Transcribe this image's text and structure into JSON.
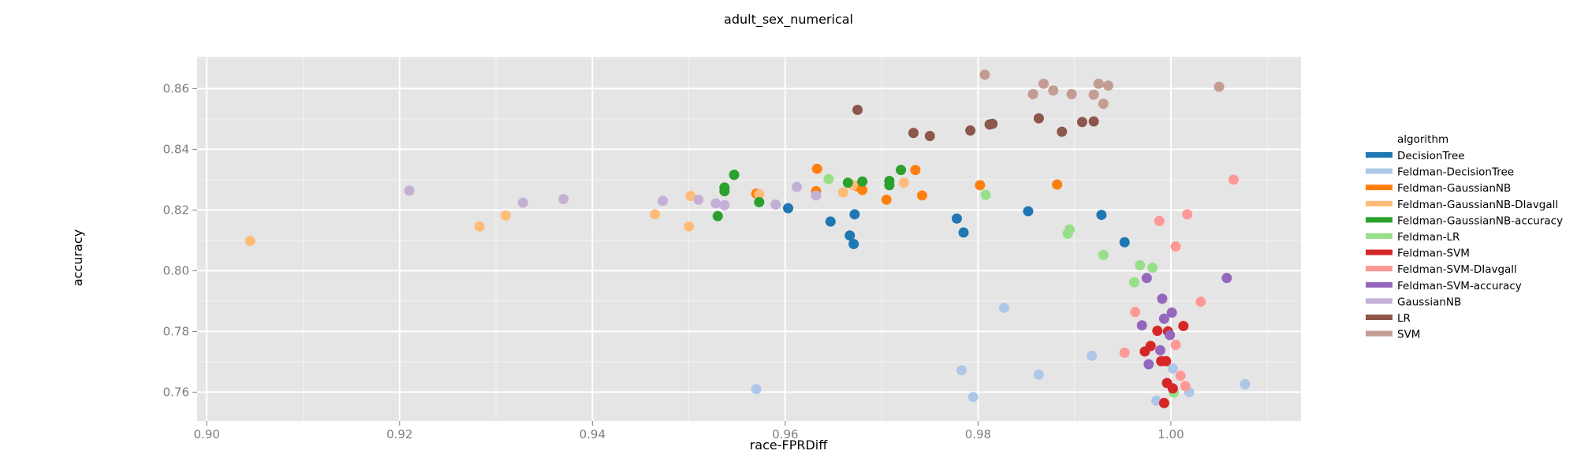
{
  "chart_data": {
    "type": "scatter",
    "title": "adult_sex_numerical",
    "xlabel": "race-FPRDiff",
    "ylabel": "accuracy",
    "xlim": [
      0.899,
      1.0135
    ],
    "ylim": [
      0.7505,
      0.8705
    ],
    "xticks": [
      0.9,
      0.92,
      0.94,
      0.96,
      0.98,
      1.0
    ],
    "xtick_labels": [
      "0.90",
      "0.92",
      "0.94",
      "0.96",
      "0.98",
      "1.00"
    ],
    "yticks": [
      0.76,
      0.78,
      0.8,
      0.82,
      0.84,
      0.86
    ],
    "ytick_labels": [
      "0.76",
      "0.78",
      "0.80",
      "0.82",
      "0.84",
      "0.86"
    ],
    "grid": true,
    "legend_title": "algorithm",
    "legend_position": "right",
    "series": [
      {
        "name": "DecisionTree",
        "color": "#1f77b4",
        "x": [
          0.9603,
          0.9647,
          0.9667,
          0.9671,
          0.9672,
          0.9778,
          0.9785,
          0.9852,
          0.9928,
          0.9952
        ],
        "y": [
          0.8206,
          0.8162,
          0.8116,
          0.8088,
          0.8186,
          0.8172,
          0.8126,
          0.8196,
          0.8184,
          0.8094
        ]
      },
      {
        "name": "Feldman-DecisionTree",
        "color": "#aec7e8",
        "x": [
          0.957,
          0.9783,
          0.9795,
          0.9827,
          0.9863,
          0.9918,
          0.9985,
          1.0002,
          1.0019,
          1.0077
        ],
        "y": [
          0.761,
          0.7672,
          0.7584,
          0.7878,
          0.7658,
          0.772,
          0.7572,
          0.7678,
          0.76,
          0.7626
        ]
      },
      {
        "name": "Feldman-GaussianNB",
        "color": "#ff7f0e",
        "x": [
          0.957,
          0.9633,
          0.9632,
          0.9675,
          0.968,
          0.9705,
          0.9735,
          0.9742,
          0.9802,
          0.9882
        ],
        "y": [
          0.8254,
          0.8336,
          0.8262,
          0.8278,
          0.8266,
          0.8234,
          0.8332,
          0.8248,
          0.8282,
          0.8284
        ]
      },
      {
        "name": "Feldman-GaussianNB-DIavgall",
        "color": "#ffbb78",
        "x": [
          0.9045,
          0.9283,
          0.931,
          0.9465,
          0.95,
          0.9502,
          0.9573,
          0.966,
          0.967,
          0.9723
        ],
        "y": [
          0.8098,
          0.8146,
          0.8182,
          0.8186,
          0.8146,
          0.8246,
          0.8252,
          0.8258,
          0.8282,
          0.829
        ]
      },
      {
        "name": "Feldman-GaussianNB-accuracy",
        "color": "#2ca02c",
        "x": [
          0.953,
          0.9537,
          0.9537,
          0.9547,
          0.9573,
          0.9665,
          0.968,
          0.9708,
          0.9708,
          0.972
        ],
        "y": [
          0.818,
          0.8262,
          0.8274,
          0.8316,
          0.8226,
          0.829,
          0.8294,
          0.8282,
          0.8296,
          0.8332
        ]
      },
      {
        "name": "Feldman-LR",
        "color": "#98df8a",
        "x": [
          0.9645,
          0.9808,
          0.9893,
          0.9895,
          0.993,
          0.9962,
          0.9968,
          0.9981,
          1.0003
        ],
        "y": [
          0.8302,
          0.825,
          0.8122,
          0.8136,
          0.8052,
          0.7962,
          0.8018,
          0.801,
          0.7598
        ]
      },
      {
        "name": "Feldman-SVM",
        "color": "#d62728",
        "x": [
          0.9973,
          0.9979,
          0.9986,
          0.999,
          0.9993,
          0.9995,
          0.9996,
          0.9997,
          1.0002,
          1.0013
        ],
        "y": [
          0.7734,
          0.7752,
          0.7802,
          0.7702,
          0.7564,
          0.7702,
          0.763,
          0.78,
          0.7612,
          0.7818
        ]
      },
      {
        "name": "Feldman-SVM-DIavgall",
        "color": "#ff9896",
        "x": [
          0.9952,
          0.9963,
          0.9988,
          1.0005,
          1.0005,
          1.001,
          1.0015,
          1.0017,
          1.0031,
          1.0065
        ],
        "y": [
          0.773,
          0.7864,
          0.8164,
          0.808,
          0.7756,
          0.7654,
          0.762,
          0.8186,
          0.7898,
          0.83
        ]
      },
      {
        "name": "Feldman-SVM-accuracy",
        "color": "#9467bd",
        "x": [
          0.997,
          0.9975,
          0.9977,
          0.9989,
          0.9991,
          0.9993,
          0.9999,
          1.0001,
          1.0058
        ],
        "y": [
          0.782,
          0.7976,
          0.7692,
          0.7738,
          0.7908,
          0.7842,
          0.7788,
          0.7862,
          0.7976
        ]
      },
      {
        "name": "GaussianNB",
        "color": "#c5b0d5",
        "x": [
          0.921,
          0.9328,
          0.937,
          0.9473,
          0.951,
          0.9528,
          0.9537,
          0.959,
          0.9612,
          0.9632
        ],
        "y": [
          0.8264,
          0.8224,
          0.8236,
          0.823,
          0.8234,
          0.8222,
          0.8216,
          0.8218,
          0.8276,
          0.8248
        ]
      },
      {
        "name": "LR",
        "color": "#8c564b",
        "x": [
          0.9675,
          0.9733,
          0.975,
          0.9792,
          0.9812,
          0.9815,
          0.9863,
          0.9887,
          0.9908,
          0.992
        ],
        "y": [
          0.853,
          0.8454,
          0.8444,
          0.8462,
          0.8482,
          0.8484,
          0.8502,
          0.8458,
          0.849,
          0.8492
        ]
      },
      {
        "name": "SVM",
        "color": "#c49c94",
        "x": [
          0.9807,
          0.9857,
          0.9868,
          0.9878,
          0.9897,
          0.992,
          0.9925,
          0.993,
          0.9935,
          1.005
        ],
        "y": [
          0.8646,
          0.8582,
          0.8616,
          0.8594,
          0.8582,
          0.858,
          0.8616,
          0.855,
          0.861,
          0.8606
        ]
      }
    ]
  }
}
